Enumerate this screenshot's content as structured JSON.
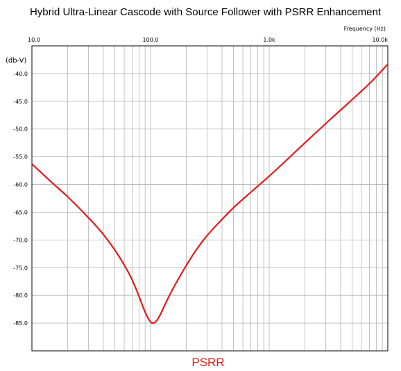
{
  "chart_data": {
    "type": "line",
    "title": "Hybrid Ultra-Linear Cascode with Source Follower with PSRR Enhancement",
    "xlabel": "Frequency  (Hz)",
    "ylabel": "(db-V)",
    "xscale": "log",
    "xlim": [
      10,
      10000
    ],
    "ylim": [
      -90,
      -35
    ],
    "grid": true,
    "x_tick_labels": [
      "10.0",
      "100.0",
      "1.0k",
      "10.0k"
    ],
    "y_tick_labels": [
      "-40.0",
      "-45.0",
      "-50.0",
      "-55.0",
      "-60.0",
      "-65.0",
      "-70.0",
      "-75.0",
      "-80.0",
      "-85.0"
    ],
    "series": [
      {
        "name": "PSRR",
        "color": "#e11b1b",
        "x": [
          10,
          15,
          20,
          30,
          40,
          50,
          60,
          70,
          80,
          90,
          100,
          105,
          110,
          120,
          130,
          150,
          170,
          200,
          250,
          300,
          400,
          500,
          700,
          1000,
          1500,
          2000,
          3000,
          5000,
          7000,
          10000
        ],
        "y": [
          -56.3,
          -59.8,
          -62.2,
          -66.0,
          -69.0,
          -71.8,
          -74.5,
          -77.2,
          -80.2,
          -83.0,
          -84.8,
          -85.0,
          -84.8,
          -83.6,
          -82.0,
          -79.3,
          -77.2,
          -74.6,
          -71.4,
          -69.2,
          -66.3,
          -64.2,
          -61.4,
          -58.5,
          -55.0,
          -52.5,
          -49.0,
          -44.7,
          -41.8,
          -38.3
        ]
      }
    ]
  }
}
